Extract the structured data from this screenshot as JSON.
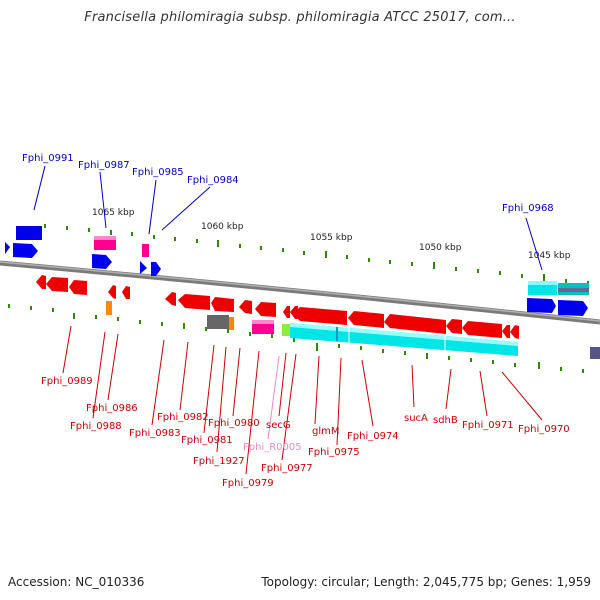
{
  "title": "Francisella philomiragia subsp. philomiragia ATCC 25017, com...",
  "footer": {
    "accession": "Accession: NC_010336",
    "summary": "Topology: circular; Length: 2,045,775 bp; Genes: 1,959"
  },
  "colors": {
    "backbone": "#8c8c8c",
    "tick": "#2e8b00",
    "forward_gene": "#0000ee",
    "reverse_gene": "#ee0000",
    "cds": "#00e5e5",
    "blue_label": "#0000cc",
    "red_label": "#cc0000",
    "pink_label": "#ee88cc"
  },
  "scale_labels": [
    "1065 kbp",
    "1060 kbp",
    "1055 kbp",
    "1050 kbp",
    "1045 kbp"
  ],
  "top_labels": [
    "Fphi_0991",
    "Fphi_0987",
    "Fphi_0985",
    "Fphi_0984",
    "Fphi_0968"
  ],
  "bottom_labels": [
    "Fphi_0989",
    "Fphi_0986",
    "Fphi_0988",
    "Fphi_0983",
    "Fphi_0982",
    "Fphi_0981",
    "Fphi_1927",
    "Fphi_0980",
    "Fphi_0979",
    "Fphi_R0005",
    "secG",
    "Fphi_0977",
    "glmM",
    "Fphi_0975",
    "Fphi_0974",
    "sucA",
    "sdhB",
    "Fphi_0971",
    "Fphi_0970"
  ]
}
